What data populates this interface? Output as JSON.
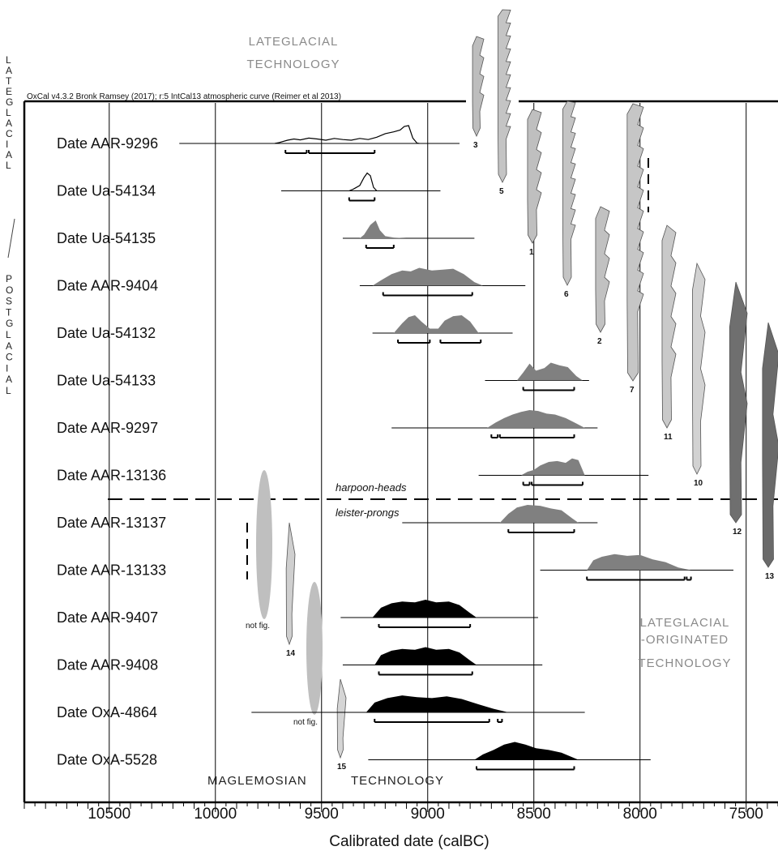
{
  "chart_data": {
    "type": "area",
    "caption": "OxCal v4.3.2 Bronk Ramsey (2017); r:5 IntCal13 atmospheric curve (Reimer et al 2013)",
    "xlabel": "Calibrated date (calBC)",
    "x_axis_reversed": true,
    "xlim": [
      10900,
      7350
    ],
    "major_ticks": [
      10500,
      10000,
      9500,
      9000,
      8500,
      8000,
      7500
    ],
    "tick_labels": [
      "10500",
      "10000",
      "9500",
      "9000",
      "8500",
      "8000",
      "7500"
    ],
    "gridlines": [
      10500,
      10000,
      9500,
      9000,
      8500,
      8000,
      7500
    ],
    "colors": {
      "outline": "#000000",
      "harpoon": "#7f7f7f",
      "leister": "#7f7f7f",
      "maglemosian": "#000000",
      "artifact": "#b5b5b5"
    },
    "series": [
      {
        "name": "Date AAR-9296",
        "group": "lateglacial",
        "style": "outline",
        "line": [
          10170,
          8850
        ],
        "peaks": [
          [
            9380,
            70
          ],
          [
            9000,
            65
          ],
          [
            8920,
            70
          ],
          [
            9060,
            45
          ]
        ],
        "pdf": [
          [
            9720,
            0
          ],
          [
            9700,
            0.05
          ],
          [
            9660,
            0.18
          ],
          [
            9630,
            0.25
          ],
          [
            9600,
            0.2
          ],
          [
            9560,
            0.3
          ],
          [
            9520,
            0.25
          ],
          [
            9480,
            0.18
          ],
          [
            9440,
            0.28
          ],
          [
            9400,
            0.22
          ],
          [
            9360,
            0.18
          ],
          [
            9320,
            0.28
          ],
          [
            9280,
            0.22
          ],
          [
            9240,
            0.35
          ],
          [
            9200,
            0.55
          ],
          [
            9160,
            0.65
          ],
          [
            9130,
            0.75
          ],
          [
            9110,
            0.95
          ],
          [
            9090,
            1.0
          ],
          [
            9070,
            0.3
          ],
          [
            9050,
            0.02
          ],
          [
            9040,
            0
          ]
        ],
        "ranges": [
          [
            9670,
            9570
          ],
          [
            9560,
            9250
          ]
        ]
      },
      {
        "name": "Date Ua-54134",
        "group": "lateglacial",
        "style": "outline",
        "line": [
          9690,
          8940
        ],
        "pdf": [
          [
            9370,
            0
          ],
          [
            9350,
            0.1
          ],
          [
            9320,
            0.3
          ],
          [
            9300,
            0.75
          ],
          [
            9285,
            1.0
          ],
          [
            9270,
            0.85
          ],
          [
            9255,
            0.2
          ],
          [
            9240,
            0
          ]
        ],
        "ranges": [
          [
            9370,
            9250
          ]
        ]
      },
      {
        "name": "Date Ua-54135",
        "group": "lateglacial",
        "style": "grey",
        "line": [
          9400,
          8780
        ],
        "pdf": [
          [
            9320,
            0
          ],
          [
            9300,
            0.2
          ],
          [
            9270,
            0.75
          ],
          [
            9245,
            1.0
          ],
          [
            9225,
            0.45
          ],
          [
            9200,
            0.12
          ],
          [
            9160,
            0.04
          ],
          [
            9100,
            0
          ]
        ],
        "ranges": [
          [
            9290,
            9160
          ]
        ]
      },
      {
        "name": "Date AAR-9404",
        "group": "harpoon-heads",
        "style": "grey",
        "line": [
          9320,
          8540
        ],
        "pdf": [
          [
            9260,
            0
          ],
          [
            9220,
            0.3
          ],
          [
            9170,
            0.65
          ],
          [
            9120,
            0.85
          ],
          [
            9080,
            0.8
          ],
          [
            9040,
            1.0
          ],
          [
            8980,
            0.85
          ],
          [
            8930,
            0.9
          ],
          [
            8880,
            0.95
          ],
          [
            8830,
            0.65
          ],
          [
            8780,
            0.2
          ],
          [
            8740,
            0
          ]
        ],
        "ranges": [
          [
            9210,
            8790
          ]
        ]
      },
      {
        "name": "Date Ua-54132",
        "group": "harpoon-heads",
        "style": "grey",
        "line": [
          9260,
          8600
        ],
        "pdf": [
          [
            9160,
            0
          ],
          [
            9120,
            0.55
          ],
          [
            9090,
            0.9
          ],
          [
            9060,
            1.0
          ],
          [
            9030,
            0.65
          ],
          [
            8990,
            0.25
          ],
          [
            8950,
            0.25
          ],
          [
            8920,
            0.7
          ],
          [
            8880,
            0.95
          ],
          [
            8840,
            1.0
          ],
          [
            8800,
            0.65
          ],
          [
            8760,
            0
          ]
        ],
        "ranges": [
          [
            9140,
            8990
          ],
          [
            8940,
            8750
          ]
        ]
      },
      {
        "name": "Date Ua-54133",
        "group": "harpoon-heads",
        "style": "grey",
        "line": [
          8730,
          8240
        ],
        "pdf": [
          [
            8580,
            0
          ],
          [
            8550,
            0.45
          ],
          [
            8520,
            0.95
          ],
          [
            8490,
            0.55
          ],
          [
            8450,
            0.7
          ],
          [
            8420,
            1.0
          ],
          [
            8380,
            0.85
          ],
          [
            8340,
            0.75
          ],
          [
            8300,
            0.25
          ],
          [
            8270,
            0
          ]
        ],
        "ranges": [
          [
            8550,
            8310
          ]
        ]
      },
      {
        "name": "Date AAR-9297",
        "group": "harpoon-heads",
        "style": "grey",
        "line": [
          9170,
          8200
        ],
        "pdf": [
          [
            8720,
            0
          ],
          [
            8680,
            0.3
          ],
          [
            8640,
            0.55
          ],
          [
            8600,
            0.75
          ],
          [
            8560,
            0.9
          ],
          [
            8520,
            1.0
          ],
          [
            8480,
            0.95
          ],
          [
            8440,
            0.8
          ],
          [
            8400,
            0.75
          ],
          [
            8350,
            0.55
          ],
          [
            8300,
            0.25
          ],
          [
            8260,
            0
          ]
        ],
        "ranges": [
          [
            8700,
            8670
          ],
          [
            8660,
            8310
          ]
        ]
      },
      {
        "name": "Date AAR-13136",
        "group": "harpoon-heads",
        "style": "grey",
        "line": [
          8760,
          7960
        ],
        "pdf": [
          [
            8560,
            0
          ],
          [
            8530,
            0.2
          ],
          [
            8500,
            0.3
          ],
          [
            8470,
            0.55
          ],
          [
            8430,
            0.75
          ],
          [
            8390,
            0.8
          ],
          [
            8350,
            0.7
          ],
          [
            8320,
            0.95
          ],
          [
            8290,
            0.85
          ],
          [
            8260,
            0
          ]
        ],
        "ranges": [
          [
            8550,
            8520
          ],
          [
            8510,
            8270
          ]
        ]
      },
      {
        "name": "Date AAR-13137",
        "group": "leister-prongs",
        "style": "grey",
        "line": [
          9120,
          8200
        ],
        "pdf": [
          [
            8660,
            0
          ],
          [
            8620,
            0.5
          ],
          [
            8580,
            0.85
          ],
          [
            8530,
            1.0
          ],
          [
            8470,
            0.95
          ],
          [
            8420,
            0.8
          ],
          [
            8370,
            0.7
          ],
          [
            8320,
            0.25
          ],
          [
            8290,
            0
          ]
        ],
        "ranges": [
          [
            8620,
            8310
          ]
        ]
      },
      {
        "name": "Date AAR-13133",
        "group": "leister-prongs",
        "style": "grey",
        "line": [
          8470,
          7560
        ],
        "pdf": [
          [
            8250,
            0
          ],
          [
            8220,
            0.55
          ],
          [
            8180,
            0.75
          ],
          [
            8120,
            0.9
          ],
          [
            8060,
            0.8
          ],
          [
            8000,
            0.85
          ],
          [
            7940,
            0.6
          ],
          [
            7880,
            0.45
          ],
          [
            7820,
            0.15
          ],
          [
            7760,
            0
          ]
        ],
        "ranges": [
          [
            8250,
            7790
          ],
          [
            7780,
            7760
          ]
        ]
      },
      {
        "name": "Date AAR-9407",
        "group": "maglemosian",
        "style": "black",
        "line": [
          9410,
          8480
        ],
        "pdf": [
          [
            9260,
            0
          ],
          [
            9220,
            0.55
          ],
          [
            9170,
            0.8
          ],
          [
            9120,
            0.9
          ],
          [
            9060,
            0.85
          ],
          [
            9010,
            1.0
          ],
          [
            8960,
            0.85
          ],
          [
            8900,
            0.9
          ],
          [
            8850,
            0.7
          ],
          [
            8800,
            0.25
          ],
          [
            8770,
            0
          ]
        ],
        "ranges": [
          [
            9230,
            8800
          ]
        ]
      },
      {
        "name": "Date AAR-9408",
        "group": "maglemosian",
        "style": "black",
        "line": [
          9400,
          8460
        ],
        "pdf": [
          [
            9250,
            0
          ],
          [
            9220,
            0.55
          ],
          [
            9170,
            0.8
          ],
          [
            9120,
            0.9
          ],
          [
            9060,
            0.85
          ],
          [
            9010,
            1.0
          ],
          [
            8960,
            0.85
          ],
          [
            8900,
            0.9
          ],
          [
            8850,
            0.7
          ],
          [
            8800,
            0.25
          ],
          [
            8770,
            0
          ]
        ],
        "ranges": [
          [
            9230,
            8790
          ]
        ]
      },
      {
        "name": "Date OxA-4864",
        "group": "maglemosian",
        "style": "black",
        "line": [
          9830,
          8260
        ],
        "pdf": [
          [
            9290,
            0
          ],
          [
            9250,
            0.55
          ],
          [
            9190,
            0.8
          ],
          [
            9120,
            0.95
          ],
          [
            9050,
            0.85
          ],
          [
            8980,
            0.8
          ],
          [
            8910,
            0.9
          ],
          [
            8840,
            0.75
          ],
          [
            8760,
            0.45
          ],
          [
            8690,
            0.2
          ],
          [
            8620,
            0
          ]
        ],
        "ranges": [
          [
            9250,
            8710
          ],
          [
            8670,
            8650
          ]
        ]
      },
      {
        "name": "Date OxA-5528",
        "group": "maglemosian",
        "style": "black",
        "line": [
          9280,
          7950
        ],
        "pdf": [
          [
            8780,
            0
          ],
          [
            8740,
            0.3
          ],
          [
            8690,
            0.55
          ],
          [
            8640,
            0.85
          ],
          [
            8590,
            1.0
          ],
          [
            8540,
            0.85
          ],
          [
            8490,
            0.65
          ],
          [
            8430,
            0.55
          ],
          [
            8370,
            0.4
          ],
          [
            8320,
            0.15
          ],
          [
            8290,
            0
          ]
        ],
        "ranges": [
          [
            8770,
            8310
          ]
        ]
      }
    ]
  },
  "labels": {
    "lateglacial_technology_1": "LATEGLACIAL",
    "lateglacial_technology_2": "TECHNOLOGY",
    "originated_1": "LATEGLACIAL",
    "originated_2": "-ORIGINATED",
    "originated_3": "TECHNOLOGY",
    "maglemosian": "MAGLEMOSIAN",
    "maglemosian_technology": "TECHNOLOGY",
    "harpoon_heads": "harpoon-heads",
    "leister_prongs": "leister-prongs",
    "vertical_top": [
      "L",
      "A",
      "T",
      "E",
      "G",
      "L",
      "A",
      "C",
      "I",
      "A",
      "L"
    ],
    "vertical_slash": "/",
    "vertical_bottom": [
      "P",
      "O",
      "S",
      "T",
      "G",
      "L",
      "A",
      "C",
      "I",
      "A",
      "L"
    ],
    "not_fig_1": "not fig.",
    "not_fig_2": "not fig."
  },
  "artifacts": [
    {
      "number": "3"
    },
    {
      "number": "5"
    },
    {
      "number": "1"
    },
    {
      "number": "6"
    },
    {
      "number": "2"
    },
    {
      "number": "7"
    },
    {
      "number": "11"
    },
    {
      "number": "10"
    },
    {
      "number": "12"
    },
    {
      "number": "13"
    },
    {
      "number": "14"
    },
    {
      "number": "15"
    }
  ]
}
